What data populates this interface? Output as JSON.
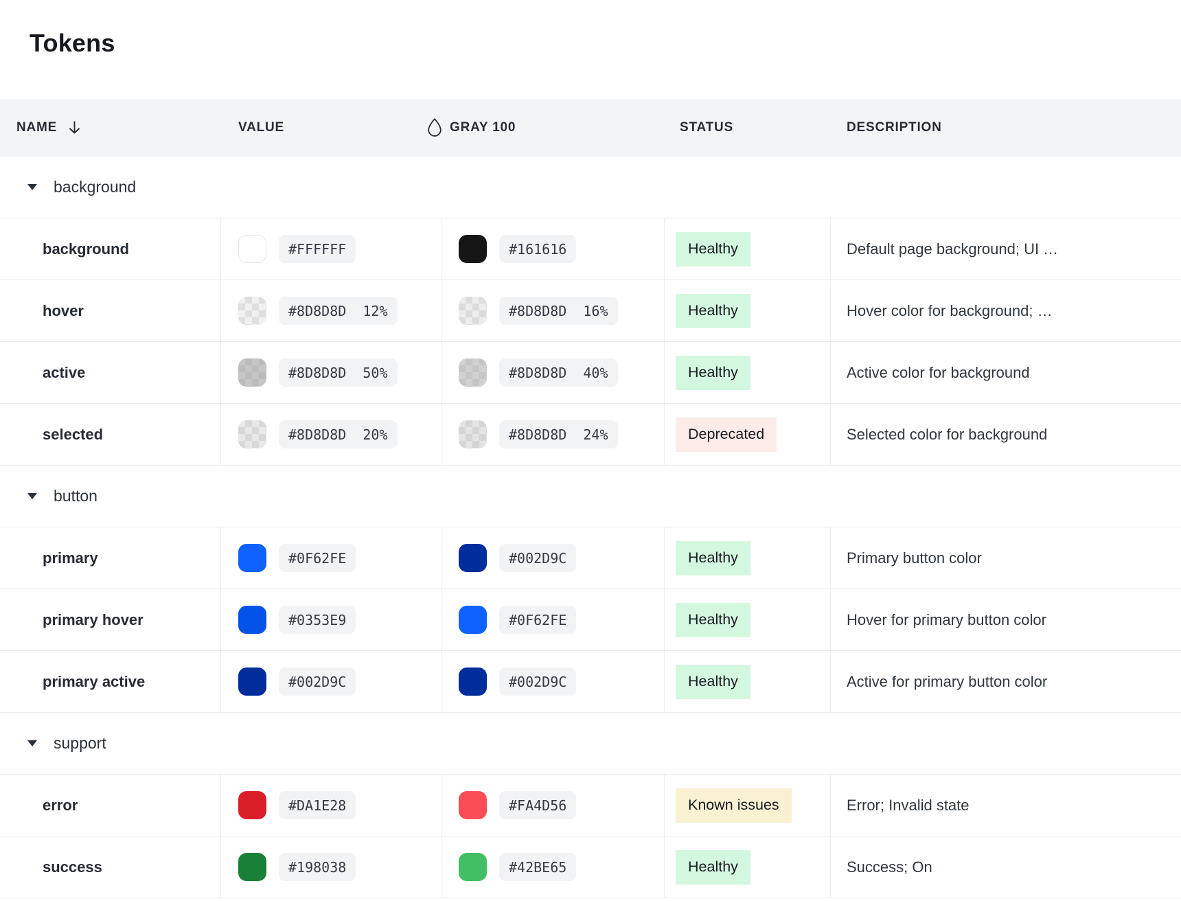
{
  "title": "Tokens",
  "columns": {
    "name": "NAME",
    "value": "VALUE",
    "gray": "GRAY 100",
    "status": "STATUS",
    "description": "DESCRIPTION"
  },
  "icons": {
    "sort": "arrow-down",
    "gray_column": "droplet",
    "group_toggle": "triangle-down"
  },
  "status_colors": {
    "healthy": "#d4f8df",
    "deprecated": "#fdebe9",
    "warning": "#faf0d2"
  },
  "pill_background": "#f2f3f5",
  "groups": [
    {
      "label": "background",
      "rows": [
        {
          "name": "background",
          "value": {
            "type": "solid",
            "hex": "#FFFFFF",
            "bordered": true,
            "label": "#FFFFFF"
          },
          "gray": {
            "type": "solid",
            "hex": "#161616",
            "label": "#161616"
          },
          "status": {
            "label": "Healthy",
            "kind": "healthy"
          },
          "description": "Default page background; UI …"
        },
        {
          "name": "hover",
          "value": {
            "type": "alpha",
            "hex": "#8D8D8D",
            "alpha": 0.12,
            "label": "#8D8D8D  12%"
          },
          "gray": {
            "type": "alpha",
            "hex": "#8D8D8D",
            "alpha": 0.16,
            "label": "#8D8D8D  16%"
          },
          "status": {
            "label": "Healthy",
            "kind": "healthy"
          },
          "description": "Hover color for background; …"
        },
        {
          "name": "active",
          "value": {
            "type": "alpha",
            "hex": "#8D8D8D",
            "alpha": 0.5,
            "label": "#8D8D8D  50%"
          },
          "gray": {
            "type": "alpha",
            "hex": "#8D8D8D",
            "alpha": 0.4,
            "label": "#8D8D8D  40%"
          },
          "status": {
            "label": "Healthy",
            "kind": "healthy"
          },
          "description": "Active color for background"
        },
        {
          "name": "selected",
          "value": {
            "type": "alpha",
            "hex": "#8D8D8D",
            "alpha": 0.2,
            "label": "#8D8D8D  20%"
          },
          "gray": {
            "type": "alpha",
            "hex": "#8D8D8D",
            "alpha": 0.24,
            "label": "#8D8D8D  24%"
          },
          "status": {
            "label": "Deprecated",
            "kind": "deprecated"
          },
          "description": "Selected color for background"
        }
      ]
    },
    {
      "label": "button",
      "rows": [
        {
          "name": "primary",
          "value": {
            "type": "solid",
            "hex": "#0F62FE",
            "label": "#0F62FE"
          },
          "gray": {
            "type": "solid",
            "hex": "#002D9C",
            "label": "#002D9C"
          },
          "status": {
            "label": "Healthy",
            "kind": "healthy"
          },
          "description": "Primary button color"
        },
        {
          "name": "primary hover",
          "value": {
            "type": "solid",
            "hex": "#0353E9",
            "label": "#0353E9"
          },
          "gray": {
            "type": "solid",
            "hex": "#0F62FE",
            "label": "#0F62FE"
          },
          "status": {
            "label": "Healthy",
            "kind": "healthy"
          },
          "description": "Hover for primary button color"
        },
        {
          "name": "primary active",
          "value": {
            "type": "solid",
            "hex": "#002D9C",
            "label": "#002D9C"
          },
          "gray": {
            "type": "solid",
            "hex": "#002D9C",
            "label": "#002D9C"
          },
          "status": {
            "label": "Healthy",
            "kind": "healthy"
          },
          "description": "Active for primary button color"
        }
      ]
    },
    {
      "label": "support",
      "rows": [
        {
          "name": "error",
          "value": {
            "type": "solid",
            "hex": "#DA1E28",
            "label": "#DA1E28"
          },
          "gray": {
            "type": "solid",
            "hex": "#FA4D56",
            "label": "#FA4D56"
          },
          "status": {
            "label": "Known issues",
            "kind": "warning"
          },
          "description": "Error; Invalid state"
        },
        {
          "name": "success",
          "value": {
            "type": "solid",
            "hex": "#198038",
            "label": "#198038"
          },
          "gray": {
            "type": "solid",
            "hex": "#42BE65",
            "label": "#42BE65"
          },
          "status": {
            "label": "Healthy",
            "kind": "healthy"
          },
          "description": "Success; On"
        }
      ]
    }
  ]
}
